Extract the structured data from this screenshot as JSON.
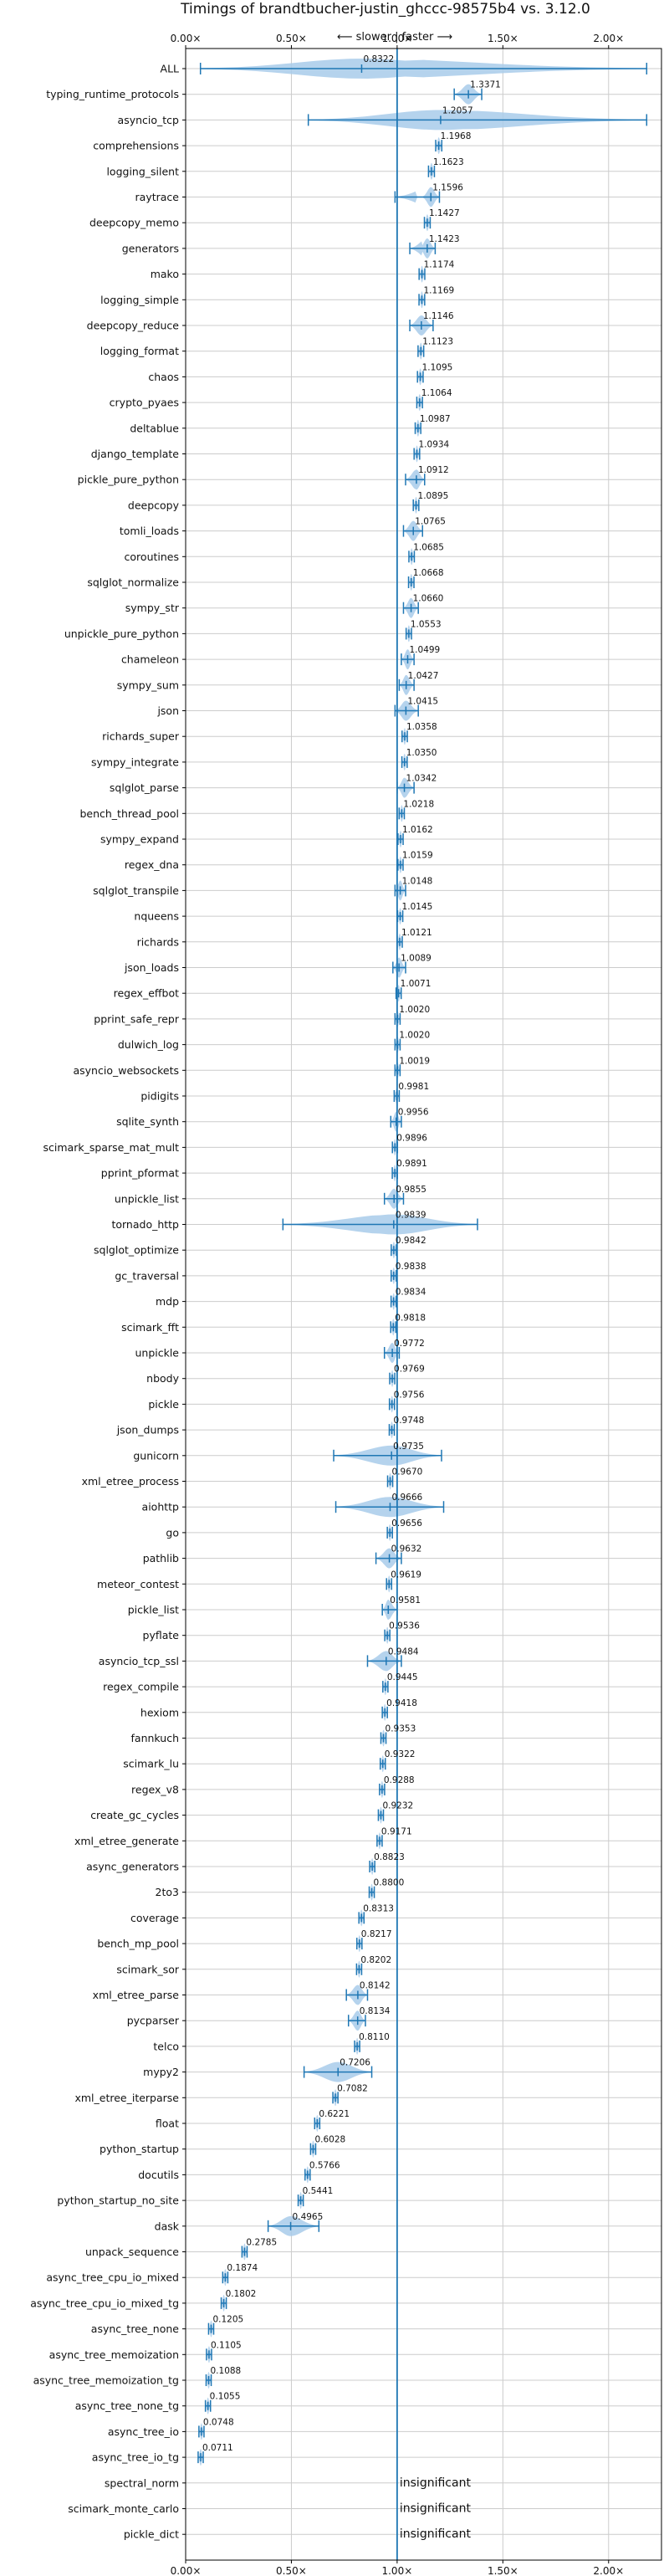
{
  "chart_data": {
    "type": "violin",
    "title": "Timings of brandtbucher-justin_ghccc-98575b4 vs. 3.12.0",
    "subtitle": "⟵ slower | faster ⟶",
    "xlim": [
      0,
      2.25
    ],
    "xticks": [
      0,
      0.5,
      1.0,
      1.5,
      2.0
    ],
    "xtick_labels": [
      "0.00×",
      "0.50×",
      "1.00×",
      "1.50×",
      "2.00×"
    ],
    "reference_line": 1.0,
    "grid": true,
    "insignificant_label": "insignificant",
    "benchmarks": [
      {
        "name": "ALL",
        "value": 0.8322,
        "label": "0.8322",
        "min": 0.07,
        "max": 2.18
      },
      {
        "name": "typing_runtime_protocols",
        "value": 1.3371,
        "label": "1.3371",
        "min": 1.27,
        "max": 1.4
      },
      {
        "name": "asyncio_tcp",
        "value": 1.2057,
        "label": "1.2057",
        "min": 0.58,
        "max": 2.18
      },
      {
        "name": "comprehensions",
        "value": 1.1968,
        "label": "1.1968"
      },
      {
        "name": "logging_silent",
        "value": 1.1623,
        "label": "1.1623"
      },
      {
        "name": "raytrace",
        "value": 1.1596,
        "label": "1.1596",
        "min": 0.99,
        "max": 1.2
      },
      {
        "name": "deepcopy_memo",
        "value": 1.1427,
        "label": "1.1427"
      },
      {
        "name": "generators",
        "value": 1.1423,
        "label": "1.1423",
        "min": 1.06,
        "max": 1.18
      },
      {
        "name": "mako",
        "value": 1.1174,
        "label": "1.1174"
      },
      {
        "name": "logging_simple",
        "value": 1.1169,
        "label": "1.1169"
      },
      {
        "name": "deepcopy_reduce",
        "value": 1.1146,
        "label": "1.1146",
        "min": 1.06,
        "max": 1.17
      },
      {
        "name": "logging_format",
        "value": 1.1123,
        "label": "1.1123"
      },
      {
        "name": "chaos",
        "value": 1.1095,
        "label": "1.1095"
      },
      {
        "name": "crypto_pyaes",
        "value": 1.1064,
        "label": "1.1064"
      },
      {
        "name": "deltablue",
        "value": 1.0987,
        "label": "1.0987"
      },
      {
        "name": "django_template",
        "value": 1.0934,
        "label": "1.0934"
      },
      {
        "name": "pickle_pure_python",
        "value": 1.0912,
        "label": "1.0912",
        "min": 1.04,
        "max": 1.13
      },
      {
        "name": "deepcopy",
        "value": 1.0895,
        "label": "1.0895"
      },
      {
        "name": "tomli_loads",
        "value": 1.0765,
        "label": "1.0765",
        "min": 1.03,
        "max": 1.12
      },
      {
        "name": "coroutines",
        "value": 1.0685,
        "label": "1.0685"
      },
      {
        "name": "sqlglot_normalize",
        "value": 1.0668,
        "label": "1.0668"
      },
      {
        "name": "sympy_str",
        "value": 1.066,
        "label": "1.0660",
        "min": 1.03,
        "max": 1.1
      },
      {
        "name": "unpickle_pure_python",
        "value": 1.0553,
        "label": "1.0553"
      },
      {
        "name": "chameleon",
        "value": 1.0499,
        "label": "1.0499",
        "min": 1.02,
        "max": 1.08
      },
      {
        "name": "sympy_sum",
        "value": 1.0427,
        "label": "1.0427",
        "min": 1.01,
        "max": 1.08
      },
      {
        "name": "json",
        "value": 1.0415,
        "label": "1.0415",
        "min": 0.99,
        "max": 1.1
      },
      {
        "name": "richards_super",
        "value": 1.0358,
        "label": "1.0358"
      },
      {
        "name": "sympy_integrate",
        "value": 1.035,
        "label": "1.0350"
      },
      {
        "name": "sqlglot_parse",
        "value": 1.0342,
        "label": "1.0342",
        "min": 1.0,
        "max": 1.08
      },
      {
        "name": "bench_thread_pool",
        "value": 1.0218,
        "label": "1.0218"
      },
      {
        "name": "sympy_expand",
        "value": 1.0162,
        "label": "1.0162"
      },
      {
        "name": "regex_dna",
        "value": 1.0159,
        "label": "1.0159"
      },
      {
        "name": "sqlglot_transpile",
        "value": 1.0148,
        "label": "1.0148",
        "min": 0.99,
        "max": 1.04
      },
      {
        "name": "nqueens",
        "value": 1.0145,
        "label": "1.0145"
      },
      {
        "name": "richards",
        "value": 1.0121,
        "label": "1.0121"
      },
      {
        "name": "json_loads",
        "value": 1.0089,
        "label": "1.0089",
        "min": 0.98,
        "max": 1.04
      },
      {
        "name": "regex_effbot",
        "value": 1.0071,
        "label": "1.0071"
      },
      {
        "name": "pprint_safe_repr",
        "value": 1.002,
        "label": "1.0020"
      },
      {
        "name": "dulwich_log",
        "value": 1.002,
        "label": "1.0020"
      },
      {
        "name": "asyncio_websockets",
        "value": 1.0019,
        "label": "1.0019"
      },
      {
        "name": "pidigits",
        "value": 0.9981,
        "label": "0.9981"
      },
      {
        "name": "sqlite_synth",
        "value": 0.9956,
        "label": "0.9956",
        "min": 0.97,
        "max": 1.02
      },
      {
        "name": "scimark_sparse_mat_mult",
        "value": 0.9896,
        "label": "0.9896"
      },
      {
        "name": "pprint_pformat",
        "value": 0.9891,
        "label": "0.9891"
      },
      {
        "name": "unpickle_list",
        "value": 0.9855,
        "label": "0.9855",
        "min": 0.94,
        "max": 1.03
      },
      {
        "name": "tornado_http",
        "value": 0.9839,
        "label": "0.9839",
        "min": 0.46,
        "max": 1.38
      },
      {
        "name": "sqlglot_optimize",
        "value": 0.9842,
        "label": "0.9842"
      },
      {
        "name": "gc_traversal",
        "value": 0.9838,
        "label": "0.9838"
      },
      {
        "name": "mdp",
        "value": 0.9834,
        "label": "0.9834"
      },
      {
        "name": "scimark_fft",
        "value": 0.9818,
        "label": "0.9818"
      },
      {
        "name": "unpickle",
        "value": 0.9772,
        "label": "0.9772",
        "min": 0.94,
        "max": 1.01
      },
      {
        "name": "nbody",
        "value": 0.9769,
        "label": "0.9769"
      },
      {
        "name": "pickle",
        "value": 0.9756,
        "label": "0.9756"
      },
      {
        "name": "json_dumps",
        "value": 0.9748,
        "label": "0.9748"
      },
      {
        "name": "gunicorn",
        "value": 0.9735,
        "label": "0.9735",
        "min": 0.7,
        "max": 1.21
      },
      {
        "name": "xml_etree_process",
        "value": 0.967,
        "label": "0.9670"
      },
      {
        "name": "aiohttp",
        "value": 0.9666,
        "label": "0.9666",
        "min": 0.71,
        "max": 1.22
      },
      {
        "name": "go",
        "value": 0.9656,
        "label": "0.9656"
      },
      {
        "name": "pathlib",
        "value": 0.9632,
        "label": "0.9632",
        "min": 0.9,
        "max": 1.02
      },
      {
        "name": "meteor_contest",
        "value": 0.9619,
        "label": "0.9619"
      },
      {
        "name": "pickle_list",
        "value": 0.9581,
        "label": "0.9581",
        "min": 0.93,
        "max": 1.0
      },
      {
        "name": "pyflate",
        "value": 0.9536,
        "label": "0.9536"
      },
      {
        "name": "asyncio_tcp_ssl",
        "value": 0.9484,
        "label": "0.9484",
        "min": 0.86,
        "max": 1.02
      },
      {
        "name": "regex_compile",
        "value": 0.9445,
        "label": "0.9445"
      },
      {
        "name": "hexiom",
        "value": 0.9418,
        "label": "0.9418"
      },
      {
        "name": "fannkuch",
        "value": 0.9353,
        "label": "0.9353"
      },
      {
        "name": "scimark_lu",
        "value": 0.9322,
        "label": "0.9322"
      },
      {
        "name": "regex_v8",
        "value": 0.9288,
        "label": "0.9288"
      },
      {
        "name": "create_gc_cycles",
        "value": 0.9232,
        "label": "0.9232"
      },
      {
        "name": "xml_etree_generate",
        "value": 0.9171,
        "label": "0.9171"
      },
      {
        "name": "async_generators",
        "value": 0.8823,
        "label": "0.8823"
      },
      {
        "name": "2to3",
        "value": 0.88,
        "label": "0.8800"
      },
      {
        "name": "coverage",
        "value": 0.8313,
        "label": "0.8313"
      },
      {
        "name": "bench_mp_pool",
        "value": 0.8217,
        "label": "0.8217"
      },
      {
        "name": "scimark_sor",
        "value": 0.8202,
        "label": "0.8202"
      },
      {
        "name": "xml_etree_parse",
        "value": 0.8142,
        "label": "0.8142",
        "min": 0.76,
        "max": 0.86
      },
      {
        "name": "pycparser",
        "value": 0.8134,
        "label": "0.8134",
        "min": 0.77,
        "max": 0.85
      },
      {
        "name": "telco",
        "value": 0.811,
        "label": "0.8110"
      },
      {
        "name": "mypy2",
        "value": 0.7206,
        "label": "0.7206",
        "min": 0.56,
        "max": 0.88
      },
      {
        "name": "xml_etree_iterparse",
        "value": 0.7082,
        "label": "0.7082"
      },
      {
        "name": "float",
        "value": 0.6221,
        "label": "0.6221"
      },
      {
        "name": "python_startup",
        "value": 0.6028,
        "label": "0.6028"
      },
      {
        "name": "docutils",
        "value": 0.5766,
        "label": "0.5766"
      },
      {
        "name": "python_startup_no_site",
        "value": 0.5441,
        "label": "0.5441"
      },
      {
        "name": "dask",
        "value": 0.4965,
        "label": "0.4965",
        "min": 0.39,
        "max": 0.63
      },
      {
        "name": "unpack_sequence",
        "value": 0.2785,
        "label": "0.2785"
      },
      {
        "name": "async_tree_cpu_io_mixed",
        "value": 0.1874,
        "label": "0.1874"
      },
      {
        "name": "async_tree_cpu_io_mixed_tg",
        "value": 0.1802,
        "label": "0.1802"
      },
      {
        "name": "async_tree_none",
        "value": 0.1205,
        "label": "0.1205"
      },
      {
        "name": "async_tree_memoization",
        "value": 0.1105,
        "label": "0.1105"
      },
      {
        "name": "async_tree_memoization_tg",
        "value": 0.1088,
        "label": "0.1088"
      },
      {
        "name": "async_tree_none_tg",
        "value": 0.1055,
        "label": "0.1055"
      },
      {
        "name": "async_tree_io",
        "value": 0.0748,
        "label": "0.0748"
      },
      {
        "name": "async_tree_io_tg",
        "value": 0.0711,
        "label": "0.0711"
      },
      {
        "name": "spectral_norm",
        "value": 1.0,
        "insignificant": true
      },
      {
        "name": "scimark_monte_carlo",
        "value": 1.0,
        "insignificant": true
      },
      {
        "name": "pickle_dict",
        "value": 1.0,
        "insignificant": true
      }
    ],
    "colors": {
      "violin_fill": "#a8cbea",
      "stat_line": "#1f77b4",
      "reference": "#1f77b4",
      "grid": "#cccccc",
      "marker": "#ff7f0e"
    }
  }
}
